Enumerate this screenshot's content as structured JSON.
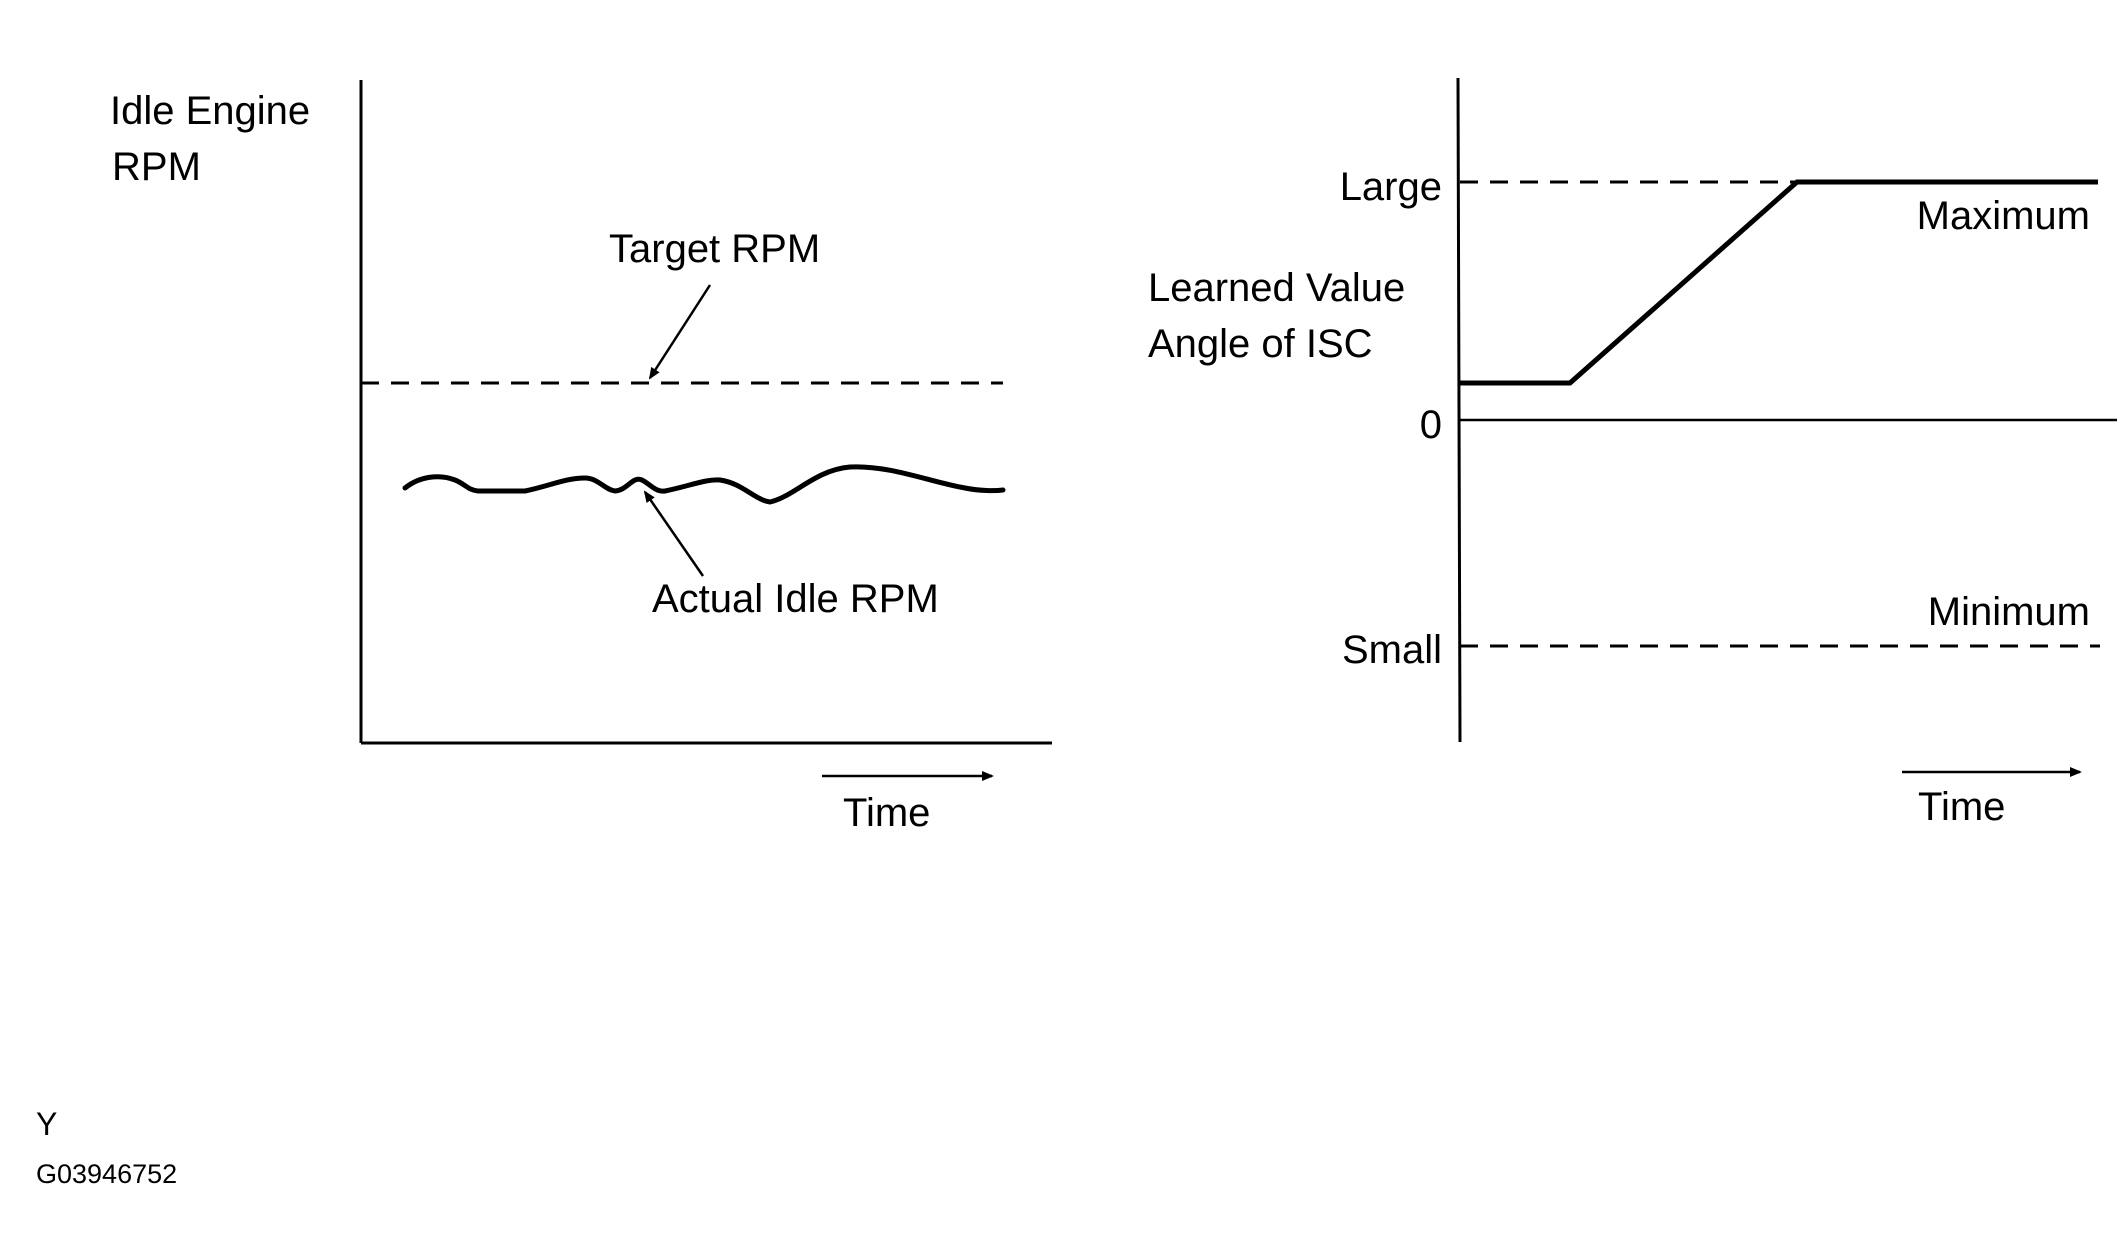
{
  "left_chart": {
    "y_label_line1": "Idle Engine",
    "y_label_line2": "RPM",
    "target_label": "Target RPM",
    "actual_label": "Actual Idle RPM",
    "time_label": "Time"
  },
  "right_chart": {
    "y_label_line1": "Learned Value",
    "y_label_line2": "Angle of ISC",
    "tick_large": "Large",
    "tick_zero": "0",
    "tick_small": "Small",
    "maximum_label": "Maximum",
    "minimum_label": "Minimum",
    "time_label": "Time"
  },
  "footer": {
    "letter": "Y",
    "code": "G03946752"
  },
  "colors": {
    "ink": "#000000",
    "background": "#ffffff"
  }
}
